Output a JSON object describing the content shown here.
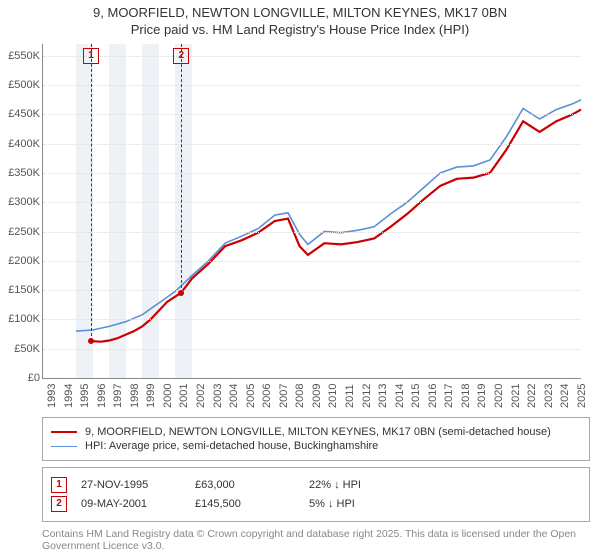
{
  "title_line1": "9, MOORFIELD, NEWTON LONGVILLE, MILTON KEYNES, MK17 0BN",
  "title_line2": "Price paid vs. HM Land Registry's House Price Index (HPI)",
  "chart": {
    "type": "line",
    "background_color": "#ffffff",
    "grid_color": "#dddddd",
    "axis_color": "#888888",
    "label_fontsize": 11,
    "title_fontsize": 13,
    "x_years": [
      1993,
      1994,
      1995,
      1996,
      1997,
      1998,
      1999,
      2000,
      2001,
      2002,
      2003,
      2004,
      2005,
      2006,
      2007,
      2008,
      2009,
      2010,
      2011,
      2012,
      2013,
      2014,
      2015,
      2016,
      2017,
      2018,
      2019,
      2020,
      2021,
      2022,
      2023,
      2024,
      2025
    ],
    "xlim": [
      1993,
      2025.5
    ],
    "ylim": [
      0,
      570000
    ],
    "ytick_step": 50000,
    "ytick_labels": [
      "£0",
      "£50K",
      "£100K",
      "£150K",
      "£200K",
      "£250K",
      "£300K",
      "£350K",
      "£400K",
      "£450K",
      "£500K",
      "£550K"
    ],
    "band_years": [
      1995,
      1996,
      1997,
      1998,
      1999,
      2000,
      2001
    ],
    "band_color": "#eef2f7",
    "series": [
      {
        "name": "property",
        "label": "9, MOORFIELD, NEWTON LONGVILLE, MILTON KEYNES, MK17 0BN (semi-detached house)",
        "color": "#cc0000",
        "line_width": 2.2,
        "x": [
          1995.9,
          1996.5,
          1997,
          1997.5,
          1998,
          1998.5,
          1999,
          1999.5,
          2000,
          2000.5,
          2001.35,
          2002,
          2003,
          2004,
          2005,
          2006,
          2007,
          2007.8,
          2008.5,
          2009,
          2010,
          2011,
          2012,
          2013,
          2014,
          2015,
          2016,
          2017,
          2018,
          2019,
          2020,
          2021,
          2022,
          2023,
          2024,
          2025,
          2025.5
        ],
        "y": [
          63000,
          62000,
          64000,
          68000,
          74000,
          80000,
          88000,
          100000,
          115000,
          130000,
          145500,
          170000,
          195000,
          225000,
          235000,
          248000,
          268000,
          272000,
          225000,
          210000,
          230000,
          228000,
          232000,
          238000,
          258000,
          280000,
          305000,
          328000,
          340000,
          342000,
          350000,
          390000,
          438000,
          420000,
          438000,
          450000,
          458000
        ]
      },
      {
        "name": "hpi",
        "label": "HPI: Average price, semi-detached house, Buckinghamshire",
        "color": "#5b8fd6",
        "line_width": 1.6,
        "x": [
          1995,
          1996,
          1997,
          1998,
          1999,
          2000,
          2001,
          2002,
          2003,
          2004,
          2005,
          2006,
          2007,
          2007.8,
          2008.5,
          2009,
          2010,
          2011,
          2012,
          2013,
          2014,
          2015,
          2016,
          2017,
          2018,
          2019,
          2020,
          2021,
          2022,
          2023,
          2024,
          2025,
          2025.5
        ],
        "y": [
          80000,
          82000,
          88000,
          96000,
          108000,
          128000,
          148000,
          175000,
          200000,
          230000,
          242000,
          255000,
          278000,
          282000,
          245000,
          228000,
          250000,
          248000,
          252000,
          258000,
          280000,
          300000,
          325000,
          350000,
          360000,
          362000,
          372000,
          412000,
          460000,
          442000,
          458000,
          468000,
          475000
        ]
      }
    ],
    "markers": [
      {
        "id": "1",
        "year": 1995.9,
        "value": 63000,
        "color": "#cc0000"
      },
      {
        "id": "2",
        "year": 2001.35,
        "value": 145500,
        "color": "#cc0000"
      }
    ]
  },
  "legend": {
    "border_color": "#aaaaaa"
  },
  "sales": [
    {
      "id": "1",
      "date": "27-NOV-1995",
      "price": "£63,000",
      "delta": "22% ↓ HPI",
      "color": "#cc0000"
    },
    {
      "id": "2",
      "date": "09-MAY-2001",
      "price": "£145,500",
      "delta": "5% ↓ HPI",
      "color": "#cc0000"
    }
  ],
  "license": "Contains HM Land Registry data © Crown copyright and database right 2025.\nThis data is licensed under the Open Government Licence v3.0."
}
